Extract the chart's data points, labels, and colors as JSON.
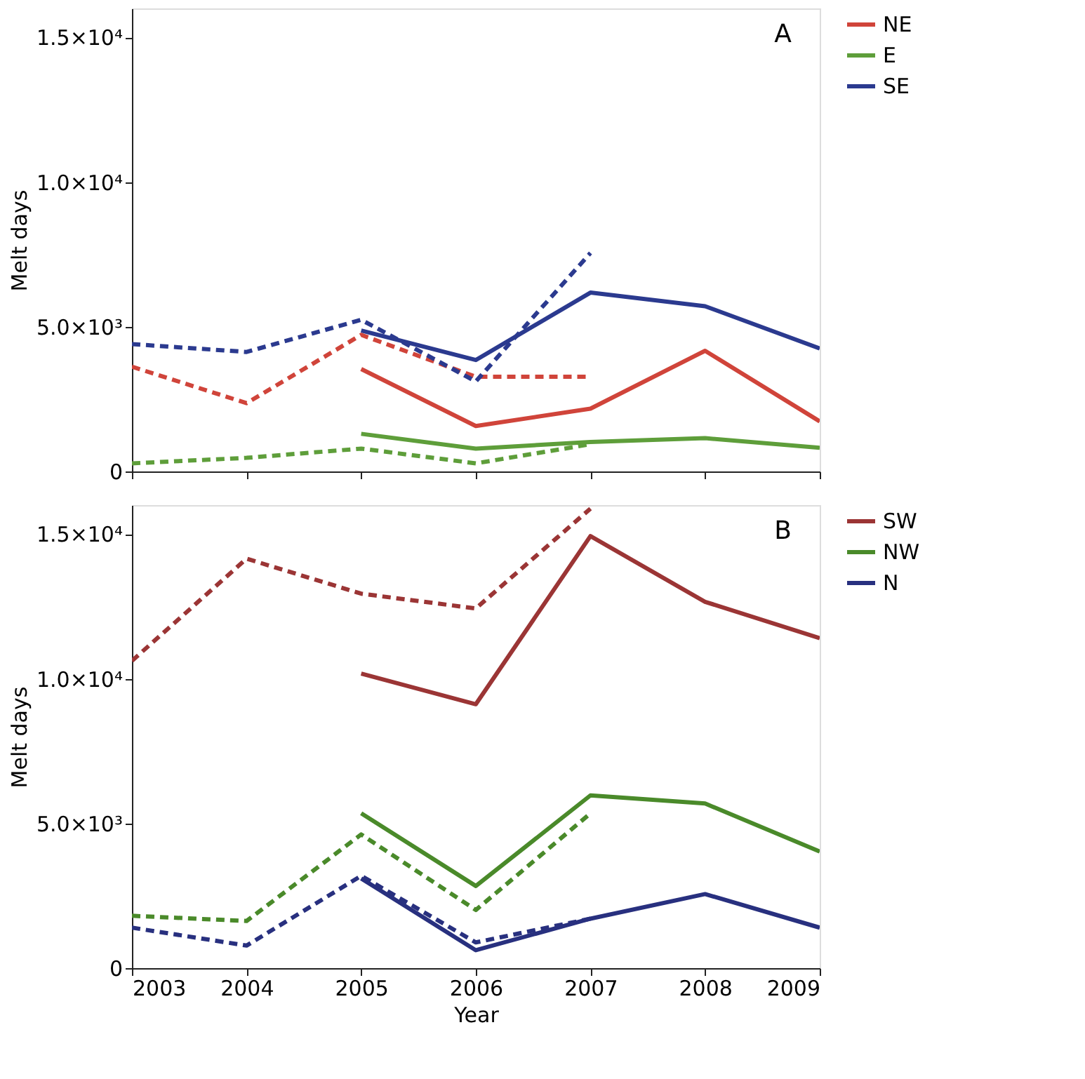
{
  "chart_data": [
    {
      "type": "line",
      "x": [
        2003,
        2004,
        2005,
        2006,
        2007,
        2008,
        2009
      ],
      "xlim": [
        2003,
        2009
      ],
      "xticks": [
        2003,
        2004,
        2005,
        2006,
        2007,
        2008,
        2009
      ],
      "ylim": [
        0,
        16000
      ],
      "yticks": [
        {
          "value": 0,
          "label": "0"
        },
        {
          "value": 5000,
          "label": "5.0×10³"
        },
        {
          "value": 10000,
          "label": "1.0×10⁴"
        },
        {
          "value": 15000,
          "label": "1.5×10⁴"
        }
      ],
      "ylabel": "Melt days",
      "tick_labels": "y",
      "legend": "right",
      "grid": false,
      "marker": "none",
      "annotations": [
        "A"
      ],
      "series": [
        {
          "name": "NE",
          "color": "#d0443a",
          "line_style": "solid",
          "values": [
            null,
            null,
            3540,
            1570,
            2170,
            4170,
            1730
          ]
        },
        {
          "name": "E",
          "color": "#5e9e3a",
          "line_style": "solid",
          "values": [
            null,
            null,
            1300,
            790,
            1020,
            1150,
            820
          ]
        },
        {
          "name": "SE",
          "color": "#2b3a8f",
          "line_style": "solid",
          "values": [
            null,
            null,
            4870,
            3850,
            6180,
            5710,
            4250
          ]
        },
        {
          "color": "#d0443a",
          "line_style": "dashed",
          "values": [
            3620,
            2360,
            4720,
            3270,
            3270,
            null,
            null
          ]
        },
        {
          "color": "#5e9e3a",
          "line_style": "dashed",
          "values": [
            280,
            470,
            790,
            280,
            940,
            null,
            null
          ]
        },
        {
          "color": "#2b3a8f",
          "line_style": "dashed",
          "values": [
            4400,
            4130,
            5240,
            3110,
            7550,
            null,
            null
          ]
        }
      ]
    },
    {
      "type": "line",
      "x": [
        2003,
        2004,
        2005,
        2006,
        2007,
        2008,
        2009
      ],
      "xlim": [
        2003,
        2009
      ],
      "xticks": [
        2003,
        2004,
        2005,
        2006,
        2007,
        2008,
        2009
      ],
      "ylim": [
        0,
        16000
      ],
      "yticks": [
        {
          "value": 0,
          "label": "0"
        },
        {
          "value": 5000,
          "label": "5.0×10³"
        },
        {
          "value": 10000,
          "label": "1.0×10⁴"
        },
        {
          "value": 15000,
          "label": "1.5×10⁴"
        }
      ],
      "xlabel": "Year",
      "ylabel": "Melt days",
      "legend": "right",
      "grid": false,
      "marker": "none",
      "annotations": [
        "B"
      ],
      "series": [
        {
          "name": "SW",
          "color": "#9b3535",
          "line_style": "solid",
          "values": [
            null,
            null,
            10180,
            9120,
            14930,
            12660,
            11400
          ]
        },
        {
          "name": "NW",
          "color": "#4a8a2a",
          "line_style": "solid",
          "values": [
            null,
            null,
            5350,
            2840,
            5970,
            5690,
            4030
          ]
        },
        {
          "name": "N",
          "color": "#28307f",
          "line_style": "solid",
          "values": [
            null,
            null,
            3100,
            620,
            1710,
            2560,
            1400
          ]
        },
        {
          "color": "#9b3535",
          "line_style": "dashed",
          "values": [
            10620,
            14150,
            12940,
            12430,
            15880,
            null,
            null
          ]
        },
        {
          "color": "#4a8a2a",
          "line_style": "dashed",
          "values": [
            1810,
            1630,
            4620,
            2010,
            5350,
            null,
            null
          ]
        },
        {
          "color": "#28307f",
          "line_style": "dashed",
          "values": [
            1400,
            780,
            3190,
            890,
            1710,
            null,
            null
          ]
        }
      ]
    }
  ]
}
